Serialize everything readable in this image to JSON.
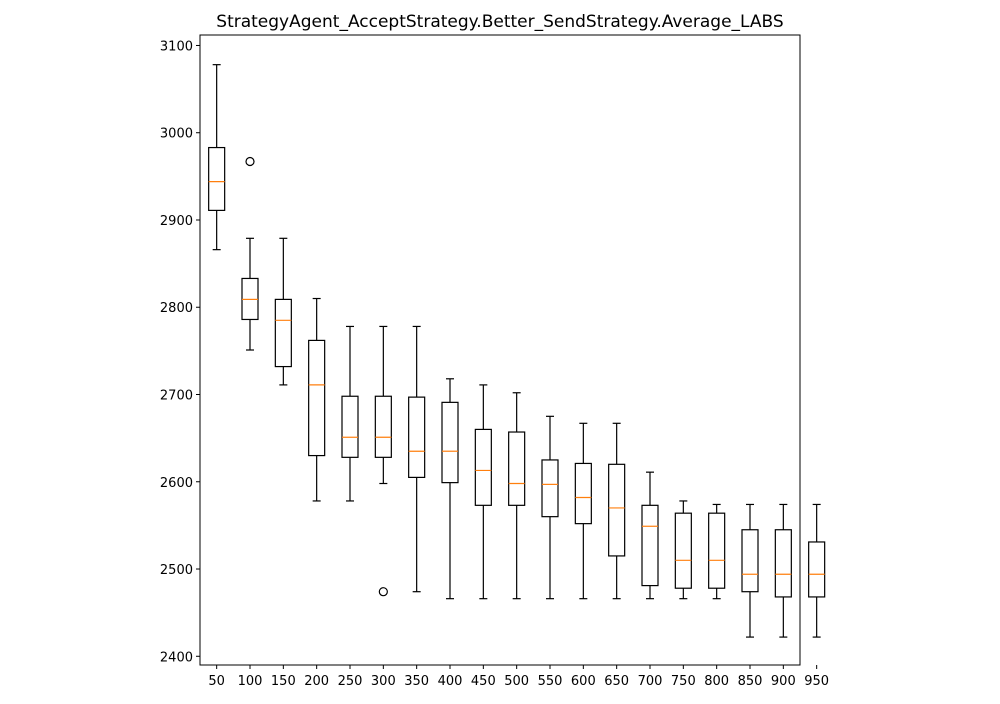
{
  "chart_data": {
    "type": "box",
    "title": "StrategyAgent_AcceptStrategy.Better_SendStrategy.Average_LABS",
    "xlabel": "",
    "ylabel": "",
    "ylim": [
      2390,
      3112
    ],
    "xlim": [
      0.5,
      18.5
    ],
    "yticks": [
      2400,
      2500,
      2600,
      2700,
      2800,
      2900,
      3000,
      3100
    ],
    "categories": [
      "50",
      "100",
      "150",
      "200",
      "250",
      "300",
      "350",
      "400",
      "450",
      "500",
      "550",
      "600",
      "650",
      "700",
      "750",
      "800",
      "850",
      "900",
      "950"
    ],
    "boxes": [
      {
        "whislo": 2866,
        "q1": 2911,
        "med": 2944,
        "q3": 2983,
        "whishi": 3078,
        "fliers": []
      },
      {
        "whislo": 2751,
        "q1": 2786,
        "med": 2809,
        "q3": 2833,
        "whishi": 2879,
        "fliers": [
          2967
        ]
      },
      {
        "whislo": 2711,
        "q1": 2732,
        "med": 2785,
        "q3": 2809,
        "whishi": 2879,
        "fliers": []
      },
      {
        "whislo": 2578,
        "q1": 2630,
        "med": 2711,
        "q3": 2762,
        "whishi": 2810,
        "fliers": []
      },
      {
        "whislo": 2578,
        "q1": 2628,
        "med": 2651,
        "q3": 2698,
        "whishi": 2778,
        "fliers": []
      },
      {
        "whislo": 2598,
        "q1": 2628,
        "med": 2651,
        "q3": 2698,
        "whishi": 2778,
        "fliers": [
          2474
        ]
      },
      {
        "whislo": 2474,
        "q1": 2605,
        "med": 2635,
        "q3": 2697,
        "whishi": 2778,
        "fliers": []
      },
      {
        "whislo": 2466,
        "q1": 2599,
        "med": 2635,
        "q3": 2691,
        "whishi": 2718,
        "fliers": []
      },
      {
        "whislo": 2466,
        "q1": 2573,
        "med": 2613,
        "q3": 2660,
        "whishi": 2711,
        "fliers": []
      },
      {
        "whislo": 2466,
        "q1": 2573,
        "med": 2598,
        "q3": 2657,
        "whishi": 2702,
        "fliers": []
      },
      {
        "whislo": 2466,
        "q1": 2560,
        "med": 2597,
        "q3": 2625,
        "whishi": 2675,
        "fliers": []
      },
      {
        "whislo": 2466,
        "q1": 2552,
        "med": 2582,
        "q3": 2621,
        "whishi": 2667,
        "fliers": []
      },
      {
        "whislo": 2466,
        "q1": 2515,
        "med": 2570,
        "q3": 2620,
        "whishi": 2667,
        "fliers": []
      },
      {
        "whislo": 2466,
        "q1": 2481,
        "med": 2549,
        "q3": 2573,
        "whishi": 2611,
        "fliers": []
      },
      {
        "whislo": 2466,
        "q1": 2478,
        "med": 2510,
        "q3": 2564,
        "whishi": 2578,
        "fliers": []
      },
      {
        "whislo": 2466,
        "q1": 2478,
        "med": 2510,
        "q3": 2564,
        "whishi": 2574,
        "fliers": []
      },
      {
        "whislo": 2422,
        "q1": 2474,
        "med": 2494,
        "q3": 2545,
        "whishi": 2574,
        "fliers": []
      },
      {
        "whislo": 2422,
        "q1": 2468,
        "med": 2494,
        "q3": 2545,
        "whishi": 2574,
        "fliers": []
      },
      {
        "whislo": 2422,
        "q1": 2468,
        "med": 2494,
        "q3": 2531,
        "whishi": 2574,
        "fliers": []
      }
    ],
    "grid": false,
    "legend": "none",
    "colors": {
      "box": "#000000",
      "median": "#ff7f0e",
      "background": "#ffffff"
    }
  }
}
